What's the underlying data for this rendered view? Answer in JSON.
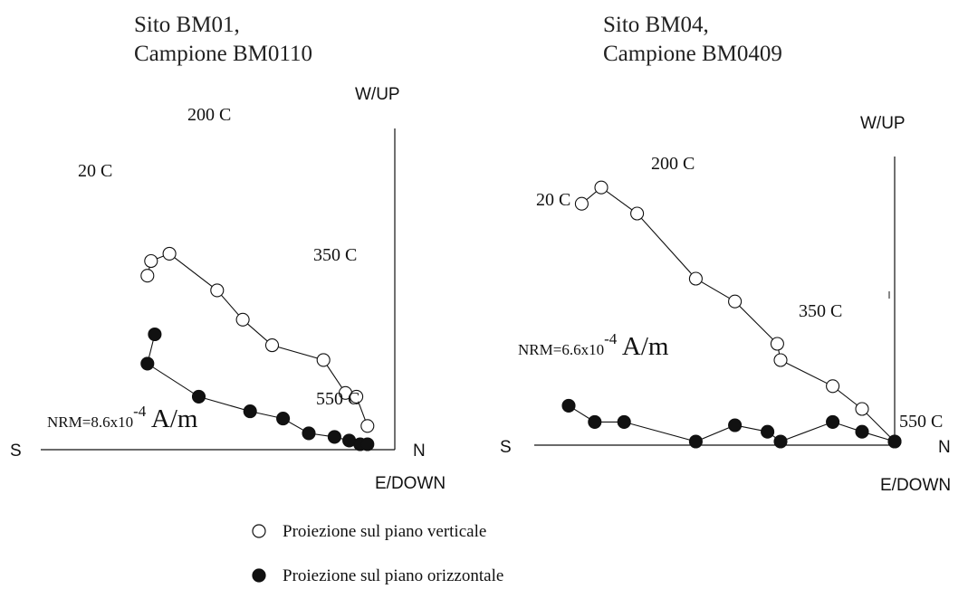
{
  "chart_data": [
    {
      "type": "scatter",
      "subtype": "zijderveld-orthogonal-projection",
      "title_line1": "Sito BM01,",
      "title_line2": "Campione BM0110",
      "axis_labels": {
        "up": "W/UP",
        "down": "E/DOWN",
        "left": "S",
        "right": "N"
      },
      "nrm_label": {
        "prefix": "NRM=8.6x10",
        "exponent": "-4",
        "unit": " A/m"
      },
      "series": [
        {
          "name": "Proiezione sul piano verticale",
          "marker": "open-circle",
          "x": [
            -6.4,
            -6.3,
            -5.8,
            -4.5,
            -3.8,
            -3.0,
            -1.6,
            -1.0,
            -0.7,
            -0.4
          ],
          "y": [
            4.6,
            5.0,
            5.2,
            4.2,
            3.4,
            2.7,
            2.3,
            1.4,
            1.3,
            0.5
          ]
        },
        {
          "name": "Proiezione sul piano orizzontale",
          "marker": "filled-circle",
          "x": [
            -6.2,
            -6.4,
            -5.0,
            -3.6,
            -2.7,
            -2.0,
            -1.3,
            -0.9,
            -0.6,
            -0.4
          ],
          "y": [
            3.0,
            2.2,
            1.3,
            0.9,
            0.7,
            0.3,
            0.2,
            0.1,
            0.0,
            0.0
          ]
        }
      ],
      "annotations": [
        "20 C",
        "200 C",
        "350 C",
        "550 C"
      ]
    },
    {
      "type": "scatter",
      "subtype": "zijderveld-orthogonal-projection",
      "title_line1": "Sito BM04,",
      "title_line2": "Campione BM0409",
      "axis_labels": {
        "up": "W/UP",
        "down": "E/DOWN",
        "left": "S",
        "right": "N"
      },
      "nrm_label": {
        "prefix": "NRM=6.6x10",
        "exponent": "-4",
        "unit": " A/m"
      },
      "series": [
        {
          "name": "Proiezione sul piano verticale",
          "marker": "open-circle",
          "x": [
            -9.6,
            -9.0,
            -7.9,
            -6.1,
            -4.9,
            -3.6,
            -3.5,
            -1.9,
            -1.0,
            0.0
          ],
          "y": [
            7.3,
            7.8,
            7.0,
            5.0,
            4.3,
            3.0,
            2.5,
            1.7,
            1.0,
            0.0
          ]
        },
        {
          "name": "Proiezione sul piano orizzontale",
          "marker": "filled-circle",
          "x": [
            -10.0,
            -9.2,
            -8.3,
            -6.1,
            -4.9,
            -3.9,
            -3.5,
            -1.9,
            -1.0,
            0.0
          ],
          "y": [
            1.1,
            0.6,
            0.6,
            0.0,
            0.5,
            0.3,
            0.0,
            0.6,
            0.3,
            0.0
          ]
        }
      ],
      "annotations": [
        "20 C",
        "200 C",
        "350 C",
        "550 C"
      ]
    }
  ],
  "legend": [
    {
      "label": "Proiezione sul piano verticale",
      "marker": "open-circle"
    },
    {
      "label": "Proiezione sul piano orizzontale",
      "marker": "filled-circle"
    }
  ],
  "colors": {
    "ink": "#111111",
    "marker_fill_open": "#ffffff",
    "marker_fill_closed": "#111111"
  }
}
